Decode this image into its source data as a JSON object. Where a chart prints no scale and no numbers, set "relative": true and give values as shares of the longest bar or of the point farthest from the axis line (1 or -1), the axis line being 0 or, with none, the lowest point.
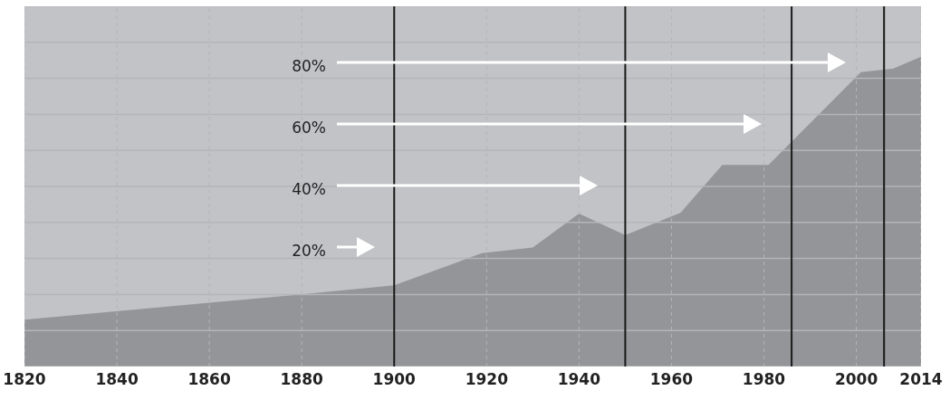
{
  "chart_data": {
    "type": "area",
    "x": [
      1820,
      1880,
      1900,
      1919,
      1930,
      1940,
      1950,
      1962,
      1971,
      1981,
      2001,
      2008,
      2014
    ],
    "values": [
      0.151,
      0.233,
      0.262,
      0.366,
      0.384,
      0.494,
      0.424,
      0.497,
      0.651,
      0.651,
      0.95,
      0.962,
      1
    ],
    "relative": true,
    "color": "#949599",
    "xlim": [
      1820,
      2014
    ],
    "xticks": [
      1820,
      1840,
      1860,
      1880,
      1900,
      1920,
      1940,
      1960,
      1980,
      2000,
      2014
    ],
    "tick_labels": "x",
    "grid": true,
    "ref_lines": [
      {
        "axis": "x",
        "value": 1900,
        "color": "#1a1a1a"
      },
      {
        "axis": "x",
        "value": 1950,
        "color": "#1a1a1a"
      },
      {
        "axis": "x",
        "value": 1986,
        "color": "#1a1a1a"
      },
      {
        "axis": "x",
        "value": 2006,
        "color": "#1a1a1a"
      }
    ],
    "annotations": [
      "20%",
      "40%",
      "60%",
      "80%"
    ]
  }
}
